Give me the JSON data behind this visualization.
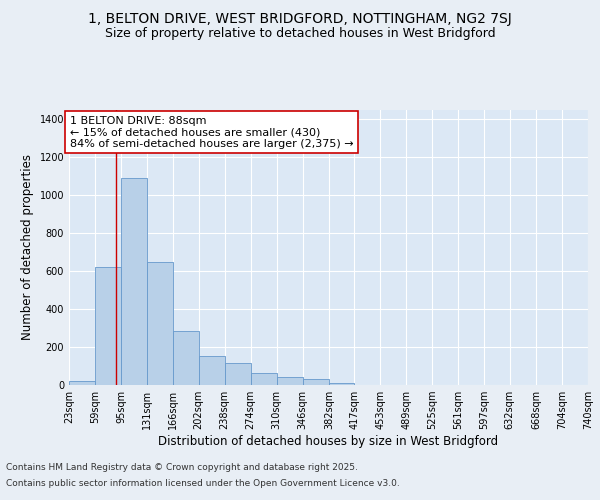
{
  "title_line1": "1, BELTON DRIVE, WEST BRIDGFORD, NOTTINGHAM, NG2 7SJ",
  "title_line2": "Size of property relative to detached houses in West Bridgford",
  "xlabel": "Distribution of detached houses by size in West Bridgford",
  "ylabel": "Number of detached properties",
  "footer_line1": "Contains HM Land Registry data © Crown copyright and database right 2025.",
  "footer_line2": "Contains public sector information licensed under the Open Government Licence v3.0.",
  "bin_edges": [
    23,
    59,
    95,
    131,
    166,
    202,
    238,
    274,
    310,
    346,
    382,
    417,
    453,
    489,
    525,
    561,
    597,
    632,
    668,
    704,
    740
  ],
  "bar_heights": [
    20,
    620,
    1090,
    650,
    285,
    155,
    115,
    65,
    40,
    30,
    8,
    0,
    0,
    0,
    0,
    0,
    0,
    0,
    0,
    0
  ],
  "bar_color": "#b8d0e8",
  "bar_edge_color": "#6699cc",
  "property_size": 88,
  "vline_color": "#cc0000",
  "annotation_text": "1 BELTON DRIVE: 88sqm\n← 15% of detached houses are smaller (430)\n84% of semi-detached houses are larger (2,375) →",
  "annotation_box_color": "#ffffff",
  "annotation_box_edge": "#cc0000",
  "ylim": [
    0,
    1450
  ],
  "yticks": [
    0,
    200,
    400,
    600,
    800,
    1000,
    1200,
    1400
  ],
  "background_color": "#e8eef5",
  "plot_background": "#dce8f5",
  "grid_color": "#ffffff",
  "title_fontsize": 10,
  "subtitle_fontsize": 9,
  "axis_label_fontsize": 8.5,
  "tick_fontsize": 7,
  "footer_fontsize": 6.5,
  "annotation_fontsize": 8
}
